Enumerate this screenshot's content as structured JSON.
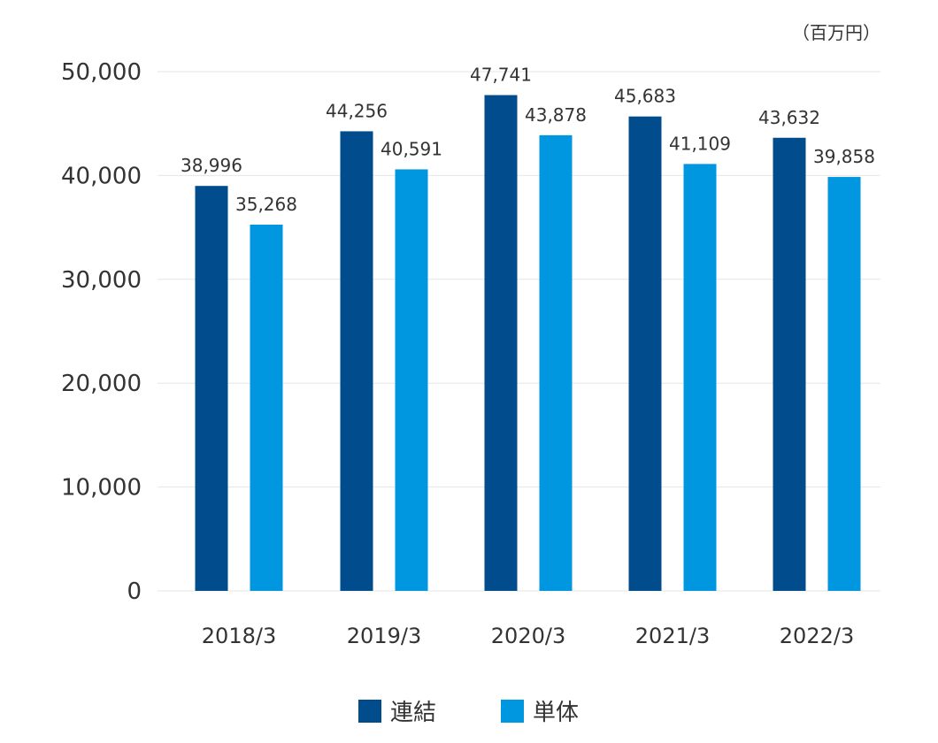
{
  "chart_data": {
    "type": "bar",
    "unit_label": "（百万円）",
    "categories": [
      "2018/3",
      "2019/3",
      "2020/3",
      "2021/3",
      "2022/3"
    ],
    "series": [
      {
        "name": "連結",
        "color": "#004c8c",
        "values": [
          38996,
          44256,
          47741,
          45683,
          43632
        ]
      },
      {
        "name": "単体",
        "color": "#0096e0",
        "values": [
          35268,
          40591,
          43878,
          41109,
          39858
        ]
      }
    ],
    "ylim": [
      0,
      50000
    ],
    "yticks": [
      0,
      10000,
      20000,
      30000,
      40000,
      50000
    ],
    "ytick_labels": [
      "0",
      "10,000",
      "20,000",
      "30,000",
      "40,000",
      "50,000"
    ],
    "data_labels": [
      [
        "38,996",
        "44,256",
        "47,741",
        "45,683",
        "43,632"
      ],
      [
        "35,268",
        "40,591",
        "43,878",
        "41,109",
        "39,858"
      ]
    ],
    "grid": true,
    "legend_position": "bottom-center"
  }
}
